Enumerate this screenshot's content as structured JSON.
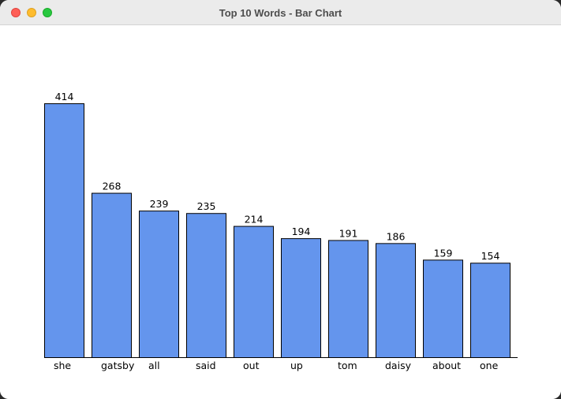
{
  "window": {
    "title": "Top 10 Words - Bar Chart"
  },
  "colors": {
    "bar_fill": "#6495ed",
    "bar_stroke": "#000000",
    "axis": "#000000"
  },
  "chart_data": {
    "type": "bar",
    "title": "",
    "xlabel": "",
    "ylabel": "",
    "categories": [
      "she",
      "gatsby",
      "all",
      "said",
      "out",
      "up",
      "tom",
      "daisy",
      "about",
      "one"
    ],
    "values": [
      414,
      268,
      239,
      235,
      214,
      194,
      191,
      186,
      159,
      154
    ],
    "data_labels": [
      "414",
      "268",
      "239",
      "235",
      "214",
      "194",
      "191",
      "186",
      "159",
      "154"
    ],
    "ylim": [
      0,
      414
    ],
    "grid": false,
    "legend": "none",
    "y_axis_visible": false
  }
}
